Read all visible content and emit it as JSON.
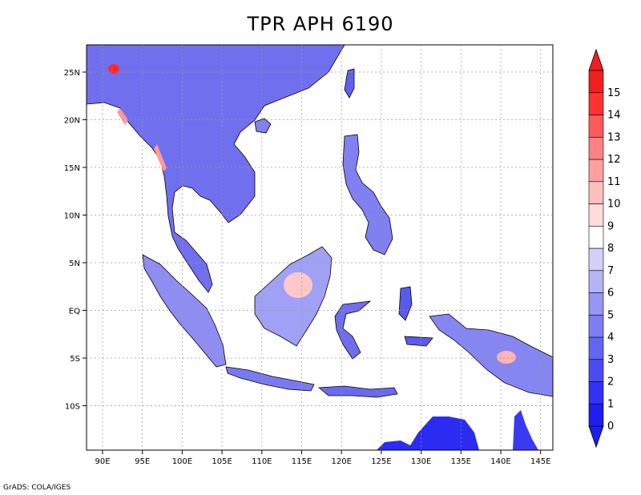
{
  "title": "TPR APH 6190",
  "credit": "GrADS: COLA/IGES",
  "map": {
    "lon_ticks": [
      "90E",
      "95E",
      "100E",
      "105E",
      "110E",
      "115E",
      "120E",
      "125E",
      "130E",
      "135E",
      "140E",
      "145E"
    ],
    "lat_ticks": [
      "25N",
      "20N",
      "15N",
      "10N",
      "5N",
      "EQ",
      "5S",
      "10S"
    ]
  },
  "colorbar": {
    "labels": [
      "0",
      "1",
      "2",
      "3",
      "4",
      "5",
      "6",
      "7",
      "8",
      "9",
      "10",
      "11",
      "12",
      "13",
      "14",
      "15"
    ],
    "colors": [
      "#1e1ef0",
      "#3232f5",
      "#4b4bf5",
      "#6464f5",
      "#7d7df5",
      "#9696f5",
      "#b4b4f5",
      "#d2d2f8",
      "#ffffff",
      "#ffdcdc",
      "#ffbebe",
      "#ffa0a0",
      "#ff8282",
      "#ff5a5a",
      "#ff3232",
      "#f01e1e"
    ],
    "below_color": "#1e1ef0",
    "above_color": "#f01e1e"
  }
}
